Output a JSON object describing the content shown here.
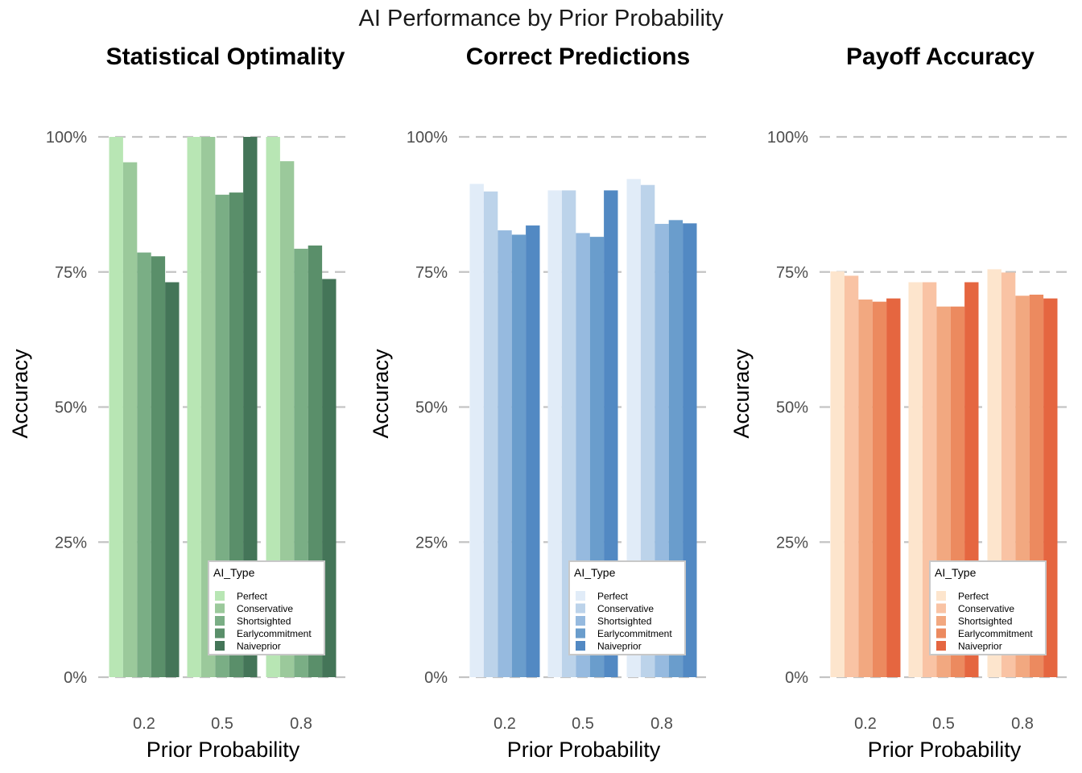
{
  "title": "AI Performance by Prior Probability",
  "legend_title": "AI_Type",
  "ai_types": [
    "Perfect",
    "Conservative",
    "Shortsighted",
    "Earlycommitment",
    "Naiveprior"
  ],
  "chart_data": [
    {
      "type": "bar",
      "title": "Statistical Optimality",
      "xlabel": "Prior Probability",
      "ylabel": "Accuracy",
      "categories": [
        "0.2",
        "0.5",
        "0.8"
      ],
      "yticks": [
        "0%",
        "25%",
        "50%",
        "75%",
        "100%"
      ],
      "ylim": [
        0,
        1.0
      ],
      "grid": "horizontal dashed",
      "legend_position": "bottom-right",
      "colors": [
        "#b8e6b4",
        "#9bc99b",
        "#7aae85",
        "#5a8f6a",
        "#447558"
      ],
      "series": [
        {
          "name": "Perfect",
          "values": [
            1.0,
            1.0,
            1.0
          ]
        },
        {
          "name": "Conservative",
          "values": [
            0.953,
            1.0,
            0.955
          ]
        },
        {
          "name": "Shortsighted",
          "values": [
            0.786,
            0.893,
            0.793
          ]
        },
        {
          "name": "Earlycommitment",
          "values": [
            0.779,
            0.897,
            0.799
          ]
        },
        {
          "name": "Naiveprior",
          "values": [
            0.731,
            1.0,
            0.737
          ]
        }
      ]
    },
    {
      "type": "bar",
      "title": "Correct Predictions",
      "xlabel": "Prior Probability",
      "ylabel": "Accuracy",
      "categories": [
        "0.2",
        "0.5",
        "0.8"
      ],
      "yticks": [
        "0%",
        "25%",
        "50%",
        "75%",
        "100%"
      ],
      "ylim": [
        0,
        1.0
      ],
      "grid": "horizontal dashed",
      "legend_position": "bottom-right",
      "colors": [
        "#e1ecf8",
        "#bcd3ea",
        "#96badf",
        "#6a9dcc",
        "#5289c3"
      ],
      "series": [
        {
          "name": "Perfect",
          "values": [
            0.913,
            0.901,
            0.922
          ]
        },
        {
          "name": "Conservative",
          "values": [
            0.899,
            0.901,
            0.911
          ]
        },
        {
          "name": "Shortsighted",
          "values": [
            0.827,
            0.822,
            0.839
          ]
        },
        {
          "name": "Earlycommitment",
          "values": [
            0.819,
            0.815,
            0.846
          ]
        },
        {
          "name": "Naiveprior",
          "values": [
            0.836,
            0.901,
            0.84
          ]
        }
      ]
    },
    {
      "type": "bar",
      "title": "Payoff Accuracy",
      "xlabel": "Prior Probability",
      "ylabel": "Accuracy",
      "categories": [
        "0.2",
        "0.5",
        "0.8"
      ],
      "yticks": [
        "0%",
        "25%",
        "50%",
        "75%",
        "100%"
      ],
      "ylim": [
        0,
        1.0
      ],
      "grid": "horizontal dashed",
      "legend_position": "bottom-right",
      "colors": [
        "#fde5cd",
        "#f9c3a4",
        "#f2a880",
        "#ec8a5f",
        "#e56640"
      ],
      "series": [
        {
          "name": "Perfect",
          "values": [
            0.751,
            0.731,
            0.755
          ]
        },
        {
          "name": "Conservative",
          "values": [
            0.743,
            0.731,
            0.749
          ]
        },
        {
          "name": "Shortsighted",
          "values": [
            0.699,
            0.686,
            0.706
          ]
        },
        {
          "name": "Earlycommitment",
          "values": [
            0.695,
            0.686,
            0.708
          ]
        },
        {
          "name": "Naiveprior",
          "values": [
            0.701,
            0.731,
            0.701
          ]
        }
      ]
    }
  ]
}
